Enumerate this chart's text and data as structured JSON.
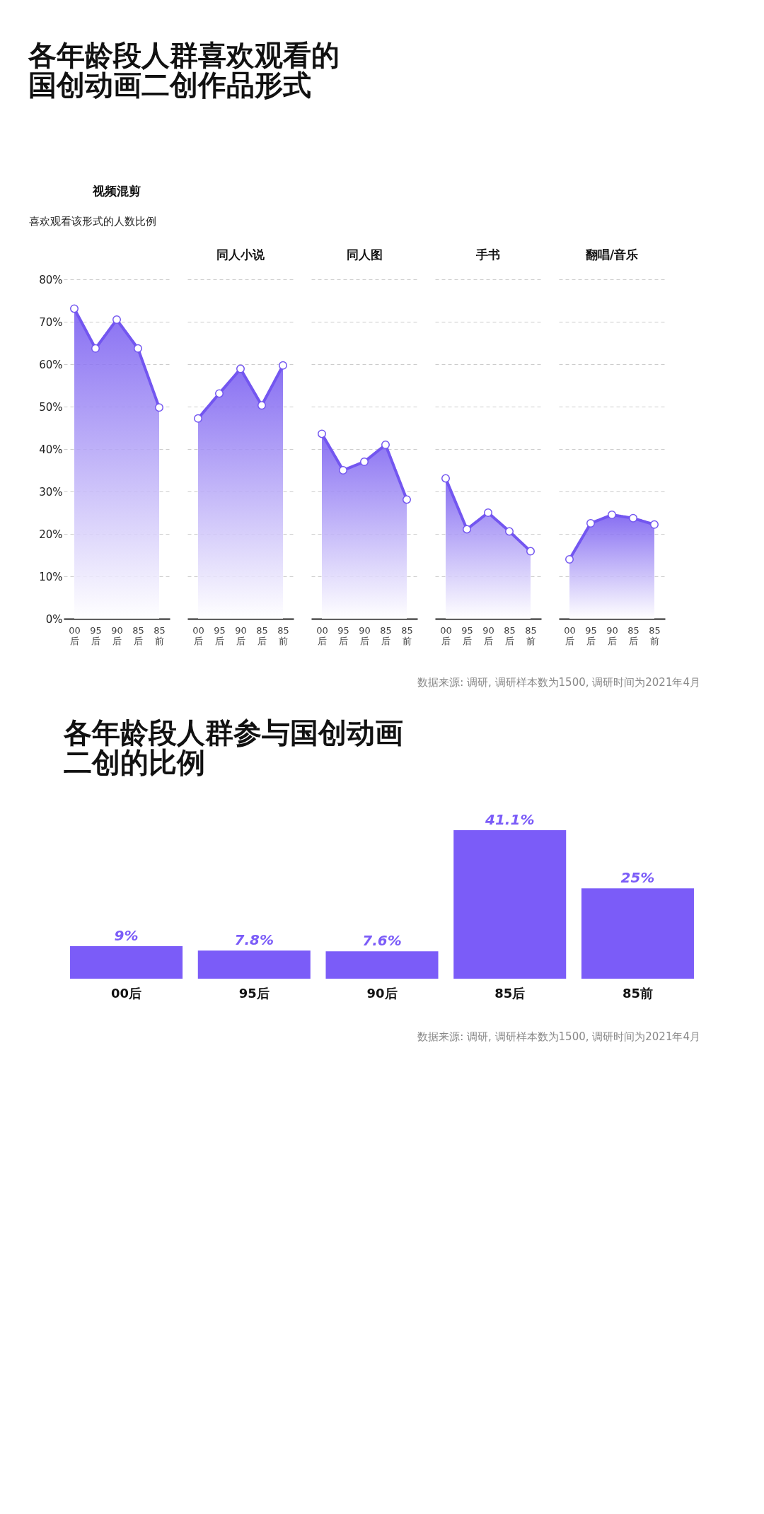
{
  "chart_data": [
    {
      "type": "area",
      "title": "视频混剪",
      "ylabel": "喜欢观看该形式的人数比例",
      "annotations": [
        "各年龄段人群喜欢观看的国创动画二创作品形式"
      ],
      "categories": [
        "00后",
        "95后",
        "90后",
        "85后",
        "85前"
      ],
      "series": [
        {
          "color": "#7356f0",
          "values": [
            73.1,
            63.7,
            70.5,
            63.7,
            49.8
          ]
        }
      ],
      "ylim": [
        0,
        80
      ],
      "yticks": [
        {
          "value": 0,
          "label": "0%"
        },
        {
          "value": 10,
          "label": "10%"
        },
        {
          "value": 20,
          "label": "20%"
        },
        {
          "value": 30,
          "label": "30%"
        },
        {
          "value": 40,
          "label": "40%"
        },
        {
          "value": 50,
          "label": "50%"
        },
        {
          "value": 60,
          "label": "60%"
        },
        {
          "value": 70,
          "label": "70%"
        },
        {
          "value": 80,
          "label": "80%"
        }
      ],
      "grid": "y",
      "marker": "circle",
      "line_style": "solid"
    },
    {
      "type": "area",
      "title": "同人小说",
      "categories": [
        "00后",
        "95后",
        "90后",
        "85后",
        "85前"
      ],
      "series": [
        {
          "color": "#7356f0",
          "values": [
            47.2,
            53.1,
            58.9,
            50.3,
            59.7
          ]
        }
      ],
      "ylim": [
        0,
        80
      ],
      "yticks": [
        0,
        10,
        20,
        30,
        40,
        50,
        60,
        70,
        80
      ],
      "grid": "y",
      "marker": "circle",
      "line_style": "solid",
      "tick_labels": "x"
    },
    {
      "type": "area",
      "title": "同人图",
      "categories": [
        "00后",
        "95后",
        "90后",
        "85后",
        "85前"
      ],
      "series": [
        {
          "color": "#7356f0",
          "values": [
            43.6,
            35.0,
            37.0,
            41.0,
            28.1
          ]
        }
      ],
      "ylim": [
        0,
        80
      ],
      "yticks": [
        0,
        10,
        20,
        30,
        40,
        50,
        60,
        70,
        80
      ],
      "grid": "y",
      "marker": "circle",
      "line_style": "solid",
      "tick_labels": "x"
    },
    {
      "type": "area",
      "title": "手书",
      "categories": [
        "00后",
        "95后",
        "90后",
        "85后",
        "85前"
      ],
      "series": [
        {
          "color": "#7356f0",
          "values": [
            33.1,
            21.1,
            25.0,
            20.6,
            15.9
          ]
        }
      ],
      "ylim": [
        0,
        80
      ],
      "yticks": [
        0,
        10,
        20,
        30,
        40,
        50,
        60,
        70,
        80
      ],
      "grid": "y",
      "marker": "circle",
      "line_style": "solid",
      "tick_labels": "x"
    },
    {
      "type": "area",
      "title": "翻唱/音乐",
      "annotations": [
        "数据来源: 调研, 调研样本数为1500, 调研时间为2021年4月"
      ],
      "categories": [
        "00后",
        "95后",
        "90后",
        "85后",
        "85前"
      ],
      "series": [
        {
          "color": "#7356f0",
          "values": [
            14.0,
            22.5,
            24.5,
            23.7,
            22.2
          ]
        }
      ],
      "ylim": [
        0,
        80
      ],
      "yticks": [
        0,
        10,
        20,
        30,
        40,
        50,
        60,
        70,
        80
      ],
      "grid": "y",
      "marker": "circle",
      "line_style": "solid",
      "tick_labels": "x"
    },
    {
      "type": "bar",
      "title": "各年龄段人群参与国创动画二创的比例",
      "annotations": [
        "数据来源: 调研, 调研样本数为1500, 调研时间为2021年4月"
      ],
      "categories": [
        "00后",
        "95后",
        "90后",
        "85后",
        "85前"
      ],
      "values": [
        9,
        7.8,
        7.6,
        41.1,
        25
      ],
      "value_labels": [
        "9%",
        "7.8%",
        "7.6%",
        "41.1%",
        "25%"
      ],
      "color": "#7b5cf8",
      "tick_labels": "x"
    }
  ]
}
